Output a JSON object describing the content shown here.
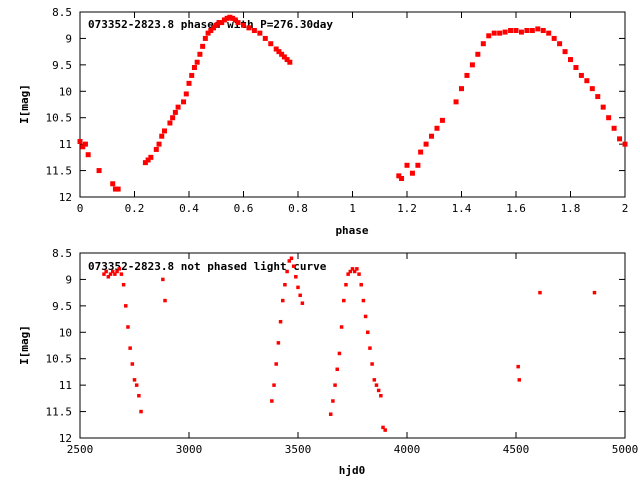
{
  "chart_data": [
    {
      "type": "scatter",
      "title": "073352-2823.8 phased with P=276.30day",
      "xlabel": "phase",
      "ylabel": "I[mag]",
      "xlim": [
        0,
        2
      ],
      "ylim": [
        8.5,
        12
      ],
      "y_inverted": true,
      "x_ticks": [
        "0",
        "0.2",
        "0.4",
        "0.6",
        "0.8",
        "1",
        "1.2",
        "1.4",
        "1.6",
        "1.8",
        "2"
      ],
      "y_ticks": [
        "8.5",
        "9",
        "9.5",
        "10",
        "10.5",
        "11",
        "11.5",
        "12"
      ],
      "grid": false,
      "marker_color": "#ff0000",
      "series": [
        {
          "x": [
            0.0,
            0.01,
            0.02,
            0.03,
            0.07,
            0.12,
            0.13,
            0.14,
            0.24,
            0.25,
            0.26,
            0.28,
            0.29,
            0.3,
            0.31,
            0.33,
            0.34,
            0.35,
            0.36,
            0.38,
            0.39,
            0.4,
            0.41,
            0.42,
            0.43,
            0.44,
            0.45,
            0.46,
            0.47,
            0.48,
            0.49,
            0.5,
            0.51,
            0.52,
            0.53,
            0.54,
            0.55,
            0.56,
            0.57,
            0.58,
            0.6,
            0.62,
            0.64,
            0.66,
            0.68,
            0.7,
            0.72,
            0.73,
            0.74,
            0.75,
            0.76,
            0.77,
            1.17,
            1.18,
            1.2,
            1.22,
            1.24,
            1.25,
            1.27,
            1.29,
            1.31,
            1.33,
            1.38,
            1.4,
            1.42,
            1.44,
            1.46,
            1.48,
            1.5,
            1.52,
            1.54,
            1.56,
            1.58,
            1.6,
            1.62,
            1.64,
            1.66,
            1.68,
            1.7,
            1.72,
            1.74,
            1.76,
            1.78,
            1.8,
            1.82,
            1.84,
            1.86,
            1.88,
            1.9,
            1.92,
            1.94,
            1.96,
            1.98,
            2.0
          ],
          "y": [
            10.95,
            11.05,
            11.0,
            11.2,
            11.5,
            11.75,
            11.85,
            11.85,
            11.35,
            11.3,
            11.25,
            11.1,
            11.0,
            10.85,
            10.75,
            10.6,
            10.5,
            10.4,
            10.3,
            10.2,
            10.05,
            9.85,
            9.7,
            9.55,
            9.45,
            9.3,
            9.15,
            9.0,
            8.9,
            8.85,
            8.8,
            8.75,
            8.7,
            8.7,
            8.65,
            8.62,
            8.6,
            8.62,
            8.65,
            8.7,
            8.75,
            8.8,
            8.85,
            8.9,
            9.0,
            9.1,
            9.2,
            9.25,
            9.3,
            9.35,
            9.4,
            9.45,
            11.6,
            11.65,
            11.4,
            11.55,
            11.4,
            11.15,
            11.0,
            10.85,
            10.7,
            10.55,
            10.2,
            9.95,
            9.7,
            9.5,
            9.3,
            9.1,
            8.95,
            8.9,
            8.9,
            8.88,
            8.85,
            8.85,
            8.88,
            8.85,
            8.85,
            8.82,
            8.85,
            8.9,
            9.0,
            9.1,
            9.25,
            9.4,
            9.55,
            9.7,
            9.8,
            9.95,
            10.1,
            10.3,
            10.5,
            10.7,
            10.9,
            11.0
          ]
        }
      ]
    },
    {
      "type": "scatter",
      "title": "073352-2823.8 not phased light curve",
      "xlabel": "hjd0",
      "ylabel": "I[mag]",
      "xlim": [
        2500,
        5000
      ],
      "ylim": [
        8.5,
        12
      ],
      "y_inverted": true,
      "x_ticks": [
        "2500",
        "3000",
        "3500",
        "4000",
        "4500",
        "5000"
      ],
      "y_ticks": [
        "8.5",
        "9",
        "9.5",
        "10",
        "10.5",
        "11",
        "11.5",
        "12"
      ],
      "grid": false,
      "marker_color": "#ff0000",
      "series": [
        {
          "x": [
            2610,
            2620,
            2630,
            2640,
            2650,
            2660,
            2670,
            2680,
            2690,
            2700,
            2710,
            2720,
            2730,
            2740,
            2750,
            2760,
            2770,
            2780,
            2880,
            2890,
            3380,
            3390,
            3400,
            3410,
            3420,
            3430,
            3440,
            3450,
            3460,
            3470,
            3480,
            3490,
            3500,
            3510,
            3520,
            3650,
            3660,
            3670,
            3680,
            3690,
            3700,
            3710,
            3720,
            3730,
            3740,
            3750,
            3760,
            3770,
            3780,
            3790,
            3800,
            3810,
            3820,
            3830,
            3840,
            3850,
            3860,
            3870,
            3880,
            3890,
            3900,
            4510,
            4515,
            4610,
            4860
          ],
          "y": [
            8.9,
            8.85,
            8.95,
            8.9,
            8.85,
            8.9,
            8.85,
            8.8,
            8.9,
            9.1,
            9.5,
            9.9,
            10.3,
            10.6,
            10.9,
            11.0,
            11.2,
            11.5,
            9.0,
            9.4,
            11.3,
            11.0,
            10.6,
            10.2,
            9.8,
            9.4,
            9.1,
            8.85,
            8.65,
            8.6,
            8.75,
            8.95,
            9.15,
            9.3,
            9.45,
            11.55,
            11.3,
            11.0,
            10.7,
            10.4,
            9.9,
            9.4,
            9.1,
            8.9,
            8.85,
            8.8,
            8.85,
            8.8,
            8.9,
            9.1,
            9.4,
            9.7,
            10.0,
            10.3,
            10.6,
            10.9,
            11.0,
            11.1,
            11.2,
            11.8,
            11.85,
            10.65,
            10.9,
            9.25,
            9.25
          ]
        }
      ]
    }
  ]
}
